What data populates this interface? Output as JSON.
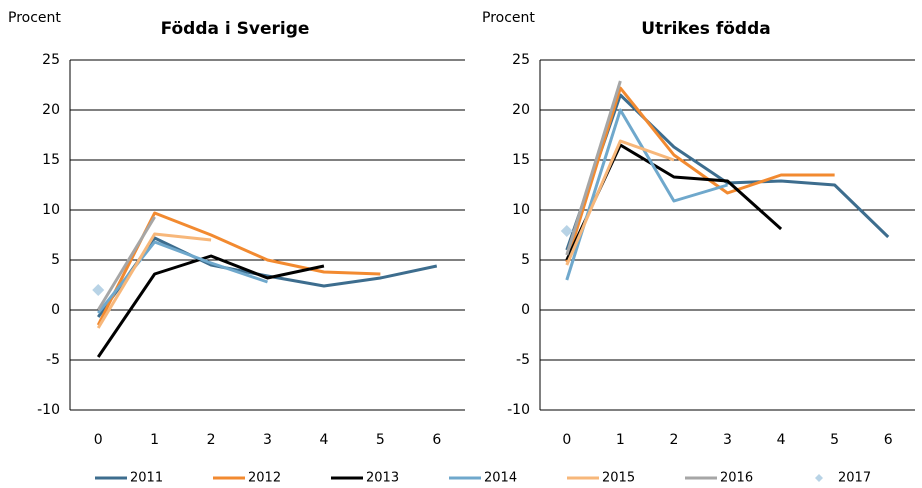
{
  "chart_data": [
    {
      "type": "line",
      "title": "Födda i Sverige",
      "y_label": "Procent",
      "categories": [
        "0",
        "1",
        "2",
        "3",
        "4",
        "5",
        "6"
      ],
      "ylim": [
        -10,
        25
      ],
      "yticks": [
        -10,
        -5,
        0,
        5,
        10,
        15,
        20,
        25
      ],
      "grid": true,
      "series": [
        {
          "name": "2011",
          "color": "#3d6d8e",
          "values": [
            -0.7,
            7.2,
            4.5,
            3.4,
            2.4,
            3.2,
            4.4
          ]
        },
        {
          "name": "2012",
          "color": "#f28a30",
          "values": [
            -1.5,
            9.7,
            7.5,
            5.0,
            3.8,
            3.6,
            null
          ]
        },
        {
          "name": "2013",
          "color": "#000000",
          "values": [
            -4.7,
            3.6,
            5.4,
            3.2,
            4.4,
            null,
            null
          ]
        },
        {
          "name": "2014",
          "color": "#6fa8cc",
          "values": [
            -0.3,
            6.8,
            4.7,
            2.8,
            null,
            null,
            null
          ]
        },
        {
          "name": "2015",
          "color": "#f7b77a",
          "values": [
            -1.8,
            7.6,
            7.0,
            null,
            null,
            null,
            null
          ]
        },
        {
          "name": "2016",
          "color": "#a6a6a6",
          "values": [
            0.0,
            9.3,
            null,
            null,
            null,
            null,
            null
          ]
        },
        {
          "name": "2017",
          "color": "#b8d3e6",
          "marker": "diamond",
          "values": [
            2.0,
            null,
            null,
            null,
            null,
            null,
            null
          ]
        }
      ]
    },
    {
      "type": "line",
      "title": "Utrikes födda",
      "y_label": "Procent",
      "categories": [
        "0",
        "1",
        "2",
        "3",
        "4",
        "5",
        "6"
      ],
      "ylim": [
        -10,
        25
      ],
      "yticks": [
        -10,
        -5,
        0,
        5,
        10,
        15,
        20,
        25
      ],
      "grid": true,
      "series": [
        {
          "name": "2011",
          "color": "#3d6d8e",
          "values": [
            6.0,
            21.5,
            16.3,
            12.7,
            12.9,
            12.5,
            7.3
          ]
        },
        {
          "name": "2012",
          "color": "#f28a30",
          "values": [
            4.8,
            22.2,
            15.5,
            11.7,
            13.5,
            13.5,
            null
          ]
        },
        {
          "name": "2013",
          "color": "#000000",
          "values": [
            5.0,
            16.5,
            13.3,
            12.9,
            8.1,
            null,
            null
          ]
        },
        {
          "name": "2014",
          "color": "#6fa8cc",
          "values": [
            3.0,
            20.0,
            10.9,
            12.5,
            null,
            null,
            null
          ]
        },
        {
          "name": "2015",
          "color": "#f7b77a",
          "values": [
            4.5,
            16.9,
            15.0,
            null,
            null,
            null,
            null
          ]
        },
        {
          "name": "2016",
          "color": "#a6a6a6",
          "values": [
            5.5,
            22.9,
            null,
            null,
            null,
            null,
            null
          ]
        },
        {
          "name": "2017",
          "color": "#b8d3e6",
          "marker": "diamond",
          "values": [
            7.9,
            null,
            null,
            null,
            null,
            null,
            null
          ]
        }
      ]
    }
  ]
}
